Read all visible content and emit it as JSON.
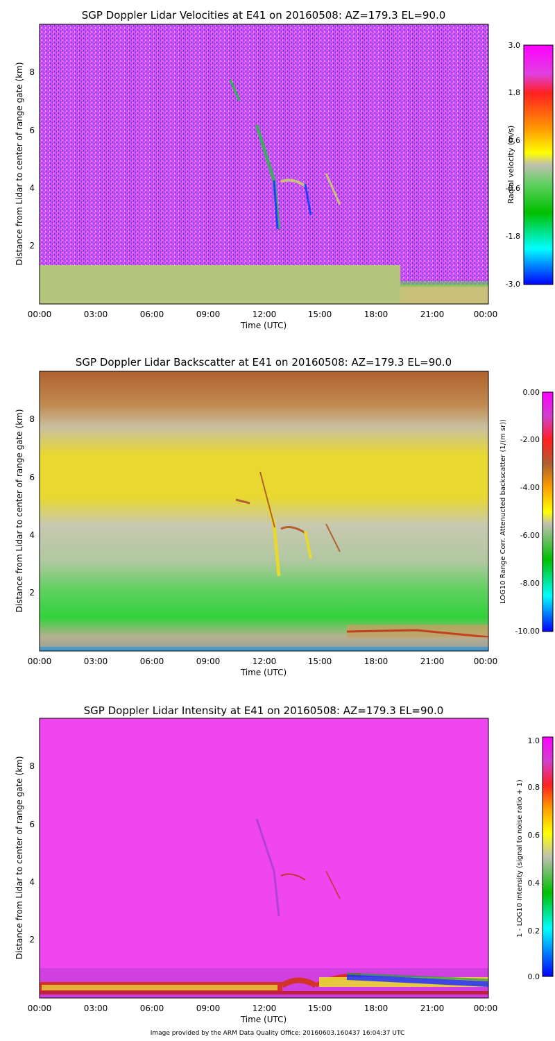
{
  "chart_data": [
    {
      "type": "heatmap",
      "title": "SGP Doppler Lidar Velocities at E41 on 20160508: AZ=179.3 EL=90.0",
      "xlabel": "Time (UTC)",
      "ylabel": "Distance from Lidar to center of range gate (km)",
      "xlim": [
        "00:00",
        "00:00"
      ],
      "ylim": [
        0,
        9.6
      ],
      "x_ticks": [
        "00:00",
        "03:00",
        "06:00",
        "09:00",
        "12:00",
        "15:00",
        "18:00",
        "21:00",
        "00:00"
      ],
      "y_ticks": [
        "2",
        "4",
        "6",
        "8"
      ],
      "colorbar": {
        "label": "Radial velocity (m/s)",
        "range": [
          -3.0,
          3.0
        ],
        "ticks": [
          "3.0",
          "1.8",
          "0.6",
          "-0.6",
          "-1.8",
          "-3.0"
        ]
      }
    },
    {
      "type": "heatmap",
      "title": "SGP Doppler Lidar Backscatter at E41 on 20160508: AZ=179.3 EL=90.0",
      "xlabel": "Time (UTC)",
      "ylabel": "Distance from Lidar to center of range gate (km)",
      "xlim": [
        "00:00",
        "00:00"
      ],
      "ylim": [
        0,
        9.6
      ],
      "x_ticks": [
        "00:00",
        "03:00",
        "06:00",
        "09:00",
        "12:00",
        "15:00",
        "18:00",
        "21:00",
        "00:00"
      ],
      "y_ticks": [
        "2",
        "4",
        "6",
        "8"
      ],
      "colorbar": {
        "label": "LOG10 Range Corr. Attenucted backscatter (1/(m sr))",
        "range": [
          -10.0,
          0.0
        ],
        "ticks": [
          "0.00",
          "-2.00",
          "-4.00",
          "-6.00",
          "-8.00",
          "-10.00"
        ]
      }
    },
    {
      "type": "heatmap",
      "title": "SGP Doppler Lidar Intensity at E41 on 20160508: AZ=179.3 EL=90.0",
      "xlabel": "Time (UTC)",
      "ylabel": "Distance from Lidar to center of range gate (km)",
      "xlim": [
        "00:00",
        "00:00"
      ],
      "ylim": [
        0,
        9.6
      ],
      "x_ticks": [
        "00:00",
        "03:00",
        "06:00",
        "09:00",
        "12:00",
        "15:00",
        "18:00",
        "21:00",
        "00:00"
      ],
      "y_ticks": [
        "2",
        "4",
        "6",
        "8"
      ],
      "colorbar": {
        "label": "1 - LOG10 Intensity (signal to noise ratio + 1)",
        "range": [
          0.0,
          1.0
        ],
        "ticks": [
          "1.0",
          "0.8",
          "0.6",
          "0.4",
          "0.2",
          "0.0"
        ]
      }
    }
  ],
  "footer": "Image provided by the ARM Data Quality Office: 20160603.160437 16:04:37 UTC",
  "colors": {
    "velocity_background": "#d24cf0",
    "velocity_noise": "#3a3ae8",
    "velocity_boundary_layer": "#c8bf7a",
    "backscatter_top": "#b0622e",
    "backscatter_mid": "#e8d830",
    "backscatter_low": "#32d23c",
    "intensity_background": "#f046f0",
    "intensity_boundary": "#d23228"
  }
}
